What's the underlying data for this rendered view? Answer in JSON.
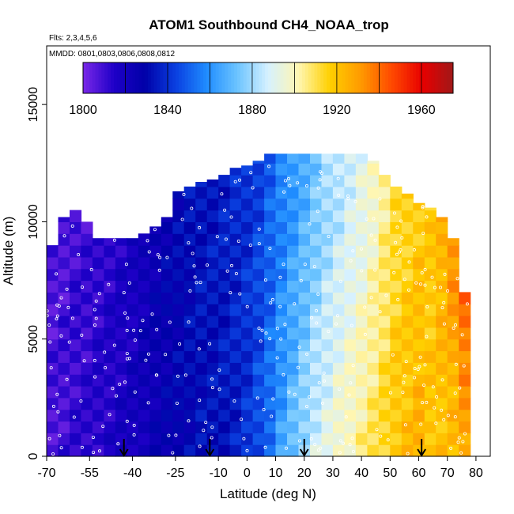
{
  "chart_data": {
    "type": "heatmap",
    "title": "ATOM1 Southbound CH4_NOAA_trop",
    "flights_note": "Flts: 2,3,4,5,6",
    "dates_note": "MMDD: 0801,0803,0806,0808,0812",
    "xlabel": "Latitude (deg N)",
    "ylabel": "Altitude (m)",
    "xlim": [
      -70,
      85
    ],
    "ylim": [
      0,
      17500
    ],
    "x_ticks": [
      "-70",
      "-55",
      "-40",
      "-25",
      "-10",
      "0",
      "10",
      "20",
      "30",
      "40",
      "50",
      "60",
      "70",
      "80"
    ],
    "x_tick_values": [
      -70,
      -55,
      -40,
      -25,
      -10,
      0,
      10,
      20,
      30,
      40,
      50,
      60,
      70,
      80
    ],
    "y_ticks": [
      "0",
      "5000",
      "10000",
      "15000"
    ],
    "y_tick_values": [
      0,
      5000,
      10000,
      15000
    ],
    "colorbar": {
      "min": 1800,
      "max": 1975,
      "tick_labels": [
        "1800",
        "1840",
        "1880",
        "1920",
        "1960"
      ],
      "tick_values": [
        1800,
        1840,
        1880,
        1920,
        1960
      ],
      "colors": [
        "#7a28e8",
        "#1f00c8",
        "#0000a8",
        "#0a3fe0",
        "#1f8cff",
        "#6cc4ff",
        "#d6f1ff",
        "#fff6b0",
        "#ffd000",
        "#ff9a00",
        "#ff4a00",
        "#e80000",
        "#a01818"
      ]
    },
    "arrow_latitudes": [
      -43,
      -13,
      20,
      61
    ],
    "lat_bins": [
      -68,
      -64,
      -60,
      -56,
      -52,
      -48,
      -44,
      -40,
      -36,
      -32,
      -28,
      -24,
      -20,
      -16,
      -12,
      -8,
      -4,
      0,
      4,
      8,
      12,
      16,
      20,
      24,
      28,
      32,
      36,
      40,
      44,
      48,
      52,
      56,
      60,
      64,
      68,
      72,
      76
    ],
    "top_altitude_m": [
      9000,
      10200,
      10500,
      10000,
      9300,
      9300,
      9300,
      9300,
      9500,
      9800,
      10200,
      11300,
      11500,
      11700,
      11800,
      12000,
      12300,
      12400,
      12600,
      12900,
      12900,
      12900,
      12900,
      12900,
      12900,
      12900,
      12900,
      12900,
      12600,
      12000,
      11500,
      11200,
      10800,
      10600,
      10200,
      9300,
      7000
    ],
    "layer_altitudes_m": [
      250,
      750,
      1250,
      1750,
      2250,
      2750,
      3250,
      3750,
      4250,
      4750,
      5250,
      5750,
      6250,
      6750,
      7250,
      7750,
      8250,
      8750,
      9250,
      9750,
      10250,
      10750,
      11250,
      11750,
      12250,
      12750
    ],
    "ch4_profile_surface_ppb": [
      1808,
      1810,
      1812,
      1813,
      1815,
      1816,
      1818,
      1820,
      1822,
      1824,
      1826,
      1828,
      1830,
      1832,
      1832,
      1834,
      1836,
      1840,
      1846,
      1854,
      1864,
      1872,
      1880,
      1888,
      1892,
      1898,
      1902,
      1906,
      1910,
      1915,
      1920,
      1922,
      1925,
      1920,
      1920,
      1920,
      1925
    ],
    "ch4_profile_upper_ppb": [
      1808,
      1808,
      1810,
      1810,
      1812,
      1814,
      1816,
      1818,
      1822,
      1825,
      1828,
      1830,
      1832,
      1834,
      1835,
      1836,
      1838,
      1840,
      1844,
      1850,
      1856,
      1862,
      1868,
      1874,
      1880,
      1884,
      1888,
      1892,
      1898,
      1905,
      1912,
      1915,
      1918,
      1918,
      1925,
      1935,
      1950
    ]
  }
}
